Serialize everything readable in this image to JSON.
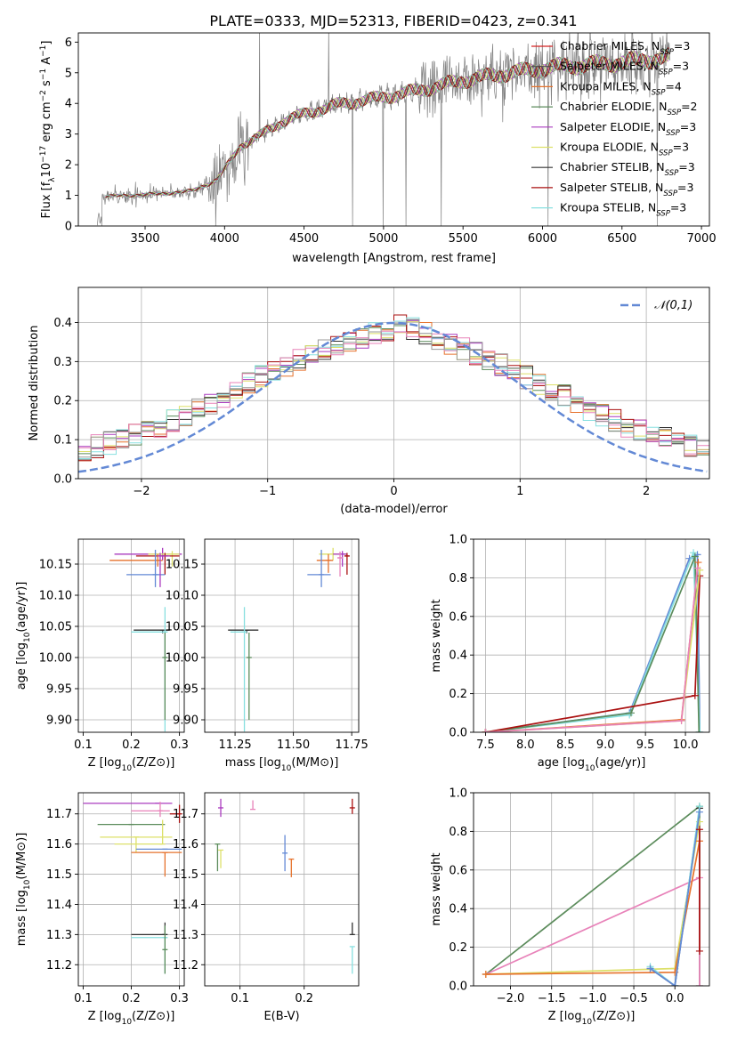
{
  "figure_title": "PLATE=0333, MJD=52313, FIBERID=0423, z=0.341",
  "palette": [
    "#6389d5",
    "#e6722c",
    "#5c8c5c",
    "#aa3bbf",
    "#dde06a",
    "#333333",
    "#aa1111",
    "#88e0e0",
    "#e882b9",
    "#999999"
  ],
  "model_legend": [
    {
      "imf": "Chabrier",
      "lib": "MILES",
      "nssp": "3",
      "color": "#d42323"
    },
    {
      "imf": "Salpeter",
      "lib": "MILES",
      "nssp": "3",
      "color": "#4d4d4d"
    },
    {
      "imf": "Kroupa",
      "lib": "MILES",
      "nssp": "4",
      "color": "#e6722c"
    },
    {
      "imf": "Chabrier",
      "lib": "ELODIE",
      "nssp": "2",
      "color": "#5c8c5c"
    },
    {
      "imf": "Salpeter",
      "lib": "ELODIE",
      "nssp": "3",
      "color": "#aa3bbf"
    },
    {
      "imf": "Kroupa",
      "lib": "ELODIE",
      "nssp": "3",
      "color": "#dde06a"
    },
    {
      "imf": "Chabrier",
      "lib": "STELIB",
      "nssp": "3",
      "color": "#333333"
    },
    {
      "imf": "Salpeter",
      "lib": "STELIB",
      "nssp": "3",
      "color": "#aa1111"
    },
    {
      "imf": "Kroupa",
      "lib": "STELIB",
      "nssp": "3",
      "color": "#88e0e0"
    }
  ],
  "chart_data": [
    {
      "id": "spectrum",
      "type": "line",
      "xlabel": "wavelength [Angstrom, rest frame]",
      "ylabel": "Flux [f_λ 10^-17 erg cm^-2 s^-1 A^-1]",
      "xlim": [
        3080,
        7050
      ],
      "ylim": [
        0,
        6.3
      ],
      "xticks": [
        3500,
        4000,
        4500,
        5000,
        5500,
        6000,
        6500,
        7000
      ],
      "yticks": [
        0,
        1,
        2,
        3,
        4,
        5,
        6
      ],
      "data_color": "#808080",
      "data_range": [
        3200,
        6800
      ],
      "continuum": {
        "x": [
          3200,
          3400,
          3600,
          3800,
          3950,
          4100,
          4400,
          4700,
          5000,
          5200,
          5500,
          5800,
          6100,
          6400,
          6800
        ],
        "y": [
          0.95,
          1.0,
          1.05,
          1.15,
          1.5,
          2.6,
          3.5,
          3.95,
          4.2,
          4.4,
          4.75,
          5.0,
          5.2,
          5.3,
          5.5
        ]
      }
    },
    {
      "id": "residuals",
      "type": "step",
      "xlabel": "(data-model)/error",
      "ylabel": "Normed distribution",
      "xlim": [
        -2.5,
        2.5
      ],
      "ylim": [
        0,
        0.49
      ],
      "xticks": [
        -2,
        -1,
        0,
        1,
        2
      ],
      "yticks": [
        0,
        0.1,
        0.2,
        0.3,
        0.4
      ],
      "bin_width": 0.1,
      "normal_label": "𝒩(0,1)",
      "normal_color": "#6389d5",
      "grid": true
    },
    {
      "id": "age_vs_Z",
      "type": "errorbar",
      "xlabel": "Z [log10(Z/Z⊙)]",
      "ylabel": "age [log10(age/yr)]",
      "xlim": [
        0.09,
        0.31
      ],
      "ylim": [
        9.88,
        10.19
      ],
      "xticks": [
        0.1,
        0.2,
        0.3
      ],
      "yticks": [
        9.9,
        9.95,
        10.0,
        10.05,
        10.1,
        10.15
      ],
      "grid": true,
      "points": [
        {
          "x": 0.265,
          "xerr": [
            0.1,
            0.04
          ],
          "y": 10.166,
          "yerr": [
            0.01,
            0.01
          ],
          "c": "#aa3bbf"
        },
        {
          "x": 0.285,
          "xerr": [
            0.05,
            0.015
          ],
          "y": 10.166,
          "yerr": [
            0.02,
            0.005
          ],
          "c": "#dde06a"
        },
        {
          "x": 0.27,
          "xerr": [
            0.06,
            0.03
          ],
          "y": 10.163,
          "yerr": [
            0.03,
            0.005
          ],
          "c": "#aa1111"
        },
        {
          "x": 0.255,
          "xerr": [
            0.1,
            0.01
          ],
          "y": 10.156,
          "yerr": [
            0.01,
            0.01
          ],
          "c": "#e6722c"
        },
        {
          "x": 0.25,
          "xerr": [
            0.06,
            0.02
          ],
          "y": 10.133,
          "yerr": [
            0.02,
            0.04
          ],
          "c": "#6389d5"
        },
        {
          "x": 0.26,
          "xerr": [
            0.0,
            0.02
          ],
          "y": 10.163,
          "yerr": [
            0.05,
            0.005
          ],
          "c": "#aa3bbf"
        },
        {
          "x": 0.265,
          "xerr": [
            0.06,
            0.015
          ],
          "y": 10.044,
          "yerr": [
            0.005,
            0.0
          ],
          "c": "#333333"
        },
        {
          "x": 0.27,
          "xerr": [
            0.07,
            0.005
          ],
          "y": 10.041,
          "yerr": [
            0.16,
            0.04
          ],
          "c": "#88e0e0"
        },
        {
          "x": 0.27,
          "xerr": [
            0.0,
            0.0
          ],
          "y": 10.0,
          "yerr": [
            0.1,
            0.04
          ],
          "c": "#5c8c5c"
        }
      ]
    },
    {
      "id": "age_vs_mass",
      "type": "errorbar",
      "xlabel": "mass [log10(M/M⊙)]",
      "ylabel": "",
      "xlim": [
        11.12,
        11.78
      ],
      "ylim": [
        9.88,
        10.19
      ],
      "xticks": [
        11.25,
        11.5,
        11.75
      ],
      "yticks": [
        9.9,
        9.95,
        10.0,
        10.05,
        10.1,
        10.15
      ],
      "grid": true,
      "points": [
        {
          "x": 11.67,
          "xerr": [
            0.06,
            0.06
          ],
          "y": 10.166,
          "yerr": [
            0.01,
            0.01
          ],
          "c": "#dde06a"
        },
        {
          "x": 11.71,
          "xerr": [
            0.04,
            0.02
          ],
          "y": 10.166,
          "yerr": [
            0.02,
            0.005
          ],
          "c": "#aa3bbf"
        },
        {
          "x": 11.73,
          "xerr": [
            0.01,
            0.01
          ],
          "y": 10.163,
          "yerr": [
            0.03,
            0.005
          ],
          "c": "#aa1111"
        },
        {
          "x": 11.65,
          "xerr": [
            0.05,
            0.02
          ],
          "y": 10.156,
          "yerr": [
            0.02,
            0.01
          ],
          "c": "#e6722c"
        },
        {
          "x": 11.62,
          "xerr": [
            0.06,
            0.04
          ],
          "y": 10.133,
          "yerr": [
            0.02,
            0.04
          ],
          "c": "#6389d5"
        },
        {
          "x": 11.7,
          "xerr": [
            0.01,
            0.01
          ],
          "y": 10.16,
          "yerr": [
            0.03,
            0.01
          ],
          "c": "#e882b9"
        },
        {
          "x": 11.3,
          "xerr": [
            0.08,
            0.05
          ],
          "y": 10.044,
          "yerr": [
            0.005,
            0.0
          ],
          "c": "#333333"
        },
        {
          "x": 11.29,
          "xerr": [
            0.06,
            0.01
          ],
          "y": 10.041,
          "yerr": [
            0.16,
            0.04
          ],
          "c": "#88e0e0"
        },
        {
          "x": 11.31,
          "xerr": [
            0.0,
            0.0
          ],
          "y": 10.0,
          "yerr": [
            0.1,
            0.04
          ],
          "c": "#5c8c5c"
        }
      ]
    },
    {
      "id": "weight_vs_age",
      "type": "line",
      "xlabel": "age [log10(age/yr)]",
      "ylabel": "mass weight",
      "xlim": [
        7.35,
        10.3
      ],
      "ylim": [
        0,
        1
      ],
      "xticks": [
        7.5,
        8.0,
        8.5,
        9.0,
        9.5,
        10.0
      ],
      "yticks": [
        0,
        0.2,
        0.4,
        0.6,
        0.8,
        1.0
      ],
      "grid": true,
      "series": [
        {
          "c": "#6389d5",
          "x": [
            7.5,
            9.3,
            10.05,
            10.15,
            10.18
          ],
          "y": [
            0.0,
            0.1,
            0.9,
            0.92,
            0.0
          ]
        },
        {
          "c": "#88e0e0",
          "x": [
            7.5,
            9.3,
            10.1,
            10.18
          ],
          "y": [
            0.0,
            0.09,
            0.93,
            0.0
          ]
        },
        {
          "c": "#5c8c5c",
          "x": [
            7.5,
            9.32,
            10.12,
            10.17
          ],
          "y": [
            0.0,
            0.1,
            0.91,
            0.0
          ]
        },
        {
          "c": "#aa1111",
          "x": [
            7.5,
            10.12,
            10.18
          ],
          "y": [
            0.0,
            0.19,
            0.81
          ]
        },
        {
          "c": "#e6722c",
          "x": [
            7.5,
            9.95,
            10.16
          ],
          "y": [
            0.0,
            0.065,
            0.88
          ]
        },
        {
          "c": "#dde06a",
          "x": [
            7.5,
            9.95,
            10.18
          ],
          "y": [
            0.0,
            0.06,
            0.84
          ]
        },
        {
          "c": "#e882b9",
          "x": [
            7.5,
            9.95,
            10.15
          ],
          "y": [
            0.0,
            0.06,
            0.85
          ]
        }
      ]
    },
    {
      "id": "mass_vs_Z",
      "type": "errorbar",
      "xlabel": "Z [log10(Z/Z⊙)]",
      "ylabel": "mass [log10(M/M⊙)]",
      "xlim": [
        0.09,
        0.31
      ],
      "ylim": [
        11.13,
        11.77
      ],
      "xticks": [
        0.1,
        0.2,
        0.3
      ],
      "yticks": [
        11.2,
        11.3,
        11.4,
        11.5,
        11.6,
        11.7
      ],
      "grid": true,
      "points": [
        {
          "x": 0.255,
          "xerr": [
            0.155,
            0.03
          ],
          "y": 11.735,
          "yerr": [
            0.0,
            0.0
          ],
          "c": "#aa3bbf"
        },
        {
          "x": 0.3,
          "xerr": [
            0.02,
            0.0
          ],
          "y": 11.7,
          "yerr": [
            0.03,
            0.03
          ],
          "c": "#aa1111"
        },
        {
          "x": 0.26,
          "xerr": [
            0.06,
            0.02
          ],
          "y": 11.71,
          "yerr": [
            0.02,
            0.03
          ],
          "c": "#e882b9"
        },
        {
          "x": 0.2,
          "xerr": [
            0.07,
            0.07
          ],
          "y": 11.665,
          "yerr": [
            0.0,
            0.0
          ],
          "c": "#5c8c5c"
        },
        {
          "x": 0.21,
          "xerr": [
            0.075,
            0.075
          ],
          "y": 11.623,
          "yerr": [
            0.05,
            0.0
          ],
          "c": "#dde06a"
        },
        {
          "x": 0.265,
          "xerr": [
            0.1,
            0.0
          ],
          "y": 11.6,
          "yerr": [
            0.0,
            0.08
          ],
          "c": "#dde06a"
        },
        {
          "x": 0.27,
          "xerr": [
            0.06,
            0.035
          ],
          "y": 11.583,
          "yerr": [
            0.0,
            0.0
          ],
          "c": "#6389d5"
        },
        {
          "x": 0.27,
          "xerr": [
            0.07,
            0.035
          ],
          "y": 11.572,
          "yerr": [
            0.08,
            0.0
          ],
          "c": "#e6722c"
        },
        {
          "x": 0.27,
          "xerr": [
            0.07,
            0.0
          ],
          "y": 11.3,
          "yerr": [
            0.0,
            0.04
          ],
          "c": "#333333"
        },
        {
          "x": 0.27,
          "xerr": [
            0.07,
            0.005
          ],
          "y": 11.29,
          "yerr": [
            0.12,
            0.0
          ],
          "c": "#88e0e0"
        },
        {
          "x": 0.27,
          "xerr": [
            0.0,
            0.0
          ],
          "y": 11.25,
          "yerr": [
            0.08,
            0.08
          ],
          "c": "#5c8c5c"
        }
      ]
    },
    {
      "id": "mass_vs_ebv",
      "type": "errorbar",
      "xlabel": "E(B-V)",
      "ylabel": "",
      "xlim": [
        0.045,
        0.285
      ],
      "ylim": [
        11.13,
        11.77
      ],
      "xticks": [
        0.1,
        0.2
      ],
      "yticks": [
        11.2,
        11.3,
        11.4,
        11.5,
        11.6,
        11.7
      ],
      "grid": true,
      "points": [
        {
          "x": 0.07,
          "y": 11.72,
          "yerr": [
            0.03,
            0.03
          ],
          "c": "#aa3bbf"
        },
        {
          "x": 0.12,
          "y": 11.715,
          "yerr": [
            0.0,
            0.03
          ],
          "c": "#e882b9"
        },
        {
          "x": 0.275,
          "y": 11.72,
          "yerr": [
            0.02,
            0.03
          ],
          "c": "#aa1111"
        },
        {
          "x": 0.065,
          "y": 11.6,
          "yerr": [
            0.09,
            0.0
          ],
          "c": "#5c8c5c"
        },
        {
          "x": 0.07,
          "y": 11.58,
          "yerr": [
            0.06,
            0.0
          ],
          "c": "#dde06a"
        },
        {
          "x": 0.17,
          "y": 11.57,
          "yerr": [
            0.06,
            0.06
          ],
          "c": "#6389d5"
        },
        {
          "x": 0.18,
          "y": 11.55,
          "yerr": [
            0.06,
            0.0
          ],
          "c": "#e6722c"
        },
        {
          "x": 0.275,
          "y": 11.3,
          "yerr": [
            0.0,
            0.04
          ],
          "c": "#333333"
        },
        {
          "x": 0.275,
          "y": 11.26,
          "yerr": [
            0.09,
            0.0
          ],
          "c": "#88e0e0"
        }
      ]
    },
    {
      "id": "weight_vs_Z",
      "type": "line",
      "xlabel": "Z [log10(Z/Z⊙)]",
      "ylabel": "mass weight",
      "xlim": [
        -2.45,
        0.42
      ],
      "ylim": [
        0,
        1
      ],
      "xticks": [
        -2.0,
        -1.5,
        -1.0,
        -0.5,
        0.0
      ],
      "yticks": [
        0,
        0.2,
        0.4,
        0.6,
        0.8,
        1.0
      ],
      "grid": true,
      "series": [
        {
          "c": "#5c8c5c",
          "x": [
            -2.3,
            0.3,
            0.3
          ],
          "y": [
            0.06,
            0.93,
            0.0
          ]
        },
        {
          "c": "#e882b9",
          "x": [
            -2.3,
            0.3,
            0.3
          ],
          "y": [
            0.06,
            0.56,
            0.0
          ]
        },
        {
          "c": "#dde06a",
          "x": [
            -2.3,
            0.0,
            0.3
          ],
          "y": [
            0.06,
            0.09,
            0.85
          ]
        },
        {
          "c": "#e6722c",
          "x": [
            -2.3,
            0.0,
            0.3
          ],
          "y": [
            0.06,
            0.07,
            0.75
          ]
        },
        {
          "c": "#333333",
          "x": [
            -0.3,
            0.0,
            0.3
          ],
          "y": [
            0.09,
            0.0,
            0.92
          ]
        },
        {
          "c": "#88e0e0",
          "x": [
            -0.3,
            0.0,
            0.3
          ],
          "y": [
            0.1,
            0.0,
            0.93
          ]
        },
        {
          "c": "#6389d5",
          "x": [
            -0.3,
            0.0,
            0.3
          ],
          "y": [
            0.09,
            0.0,
            0.9
          ]
        },
        {
          "c": "#aa1111",
          "x": [
            0.3,
            0.3
          ],
          "y": [
            0.18,
            0.81
          ]
        }
      ]
    }
  ]
}
